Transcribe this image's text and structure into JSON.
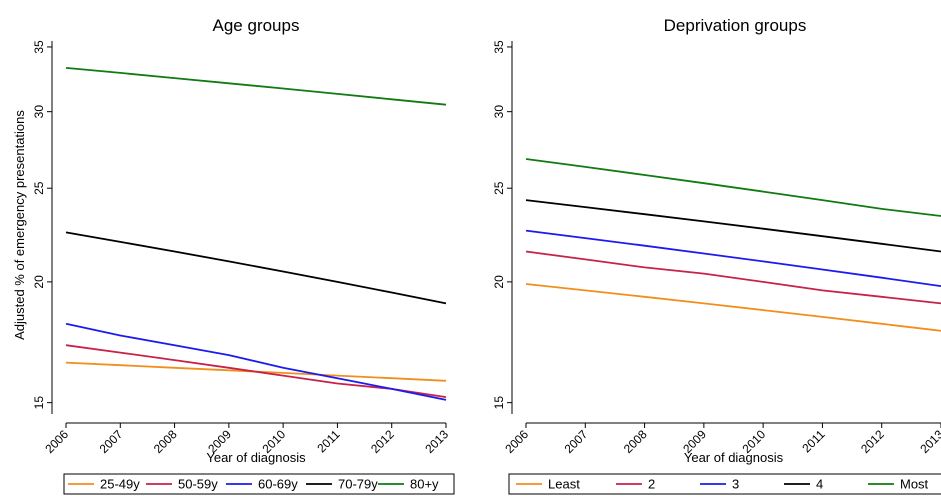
{
  "colors": {
    "orange": "#f28e1c",
    "red": "#c8214a",
    "blue": "#1b1bf0",
    "black": "#000000",
    "green": "#117a11"
  },
  "chart_data": [
    {
      "type": "line",
      "title": "Age groups",
      "xlabel": "Year of diagnosis",
      "ylabel": "Adjusted % of emergency presentations",
      "x": [
        "2006",
        "2007",
        "2008",
        "2009",
        "2010",
        "2011",
        "2012",
        "2013"
      ],
      "yscale": "log",
      "ylim": [
        14.6,
        35.5
      ],
      "yticks": [
        "15",
        "20",
        "25",
        "30",
        "35"
      ],
      "grid": false,
      "legend_position": "bottom",
      "series": [
        {
          "name": "25-49y",
          "color": "orange",
          "values": [
            16.5,
            16.4,
            16.3,
            16.2,
            16.1,
            16.0,
            15.9,
            15.8
          ]
        },
        {
          "name": "50-59y",
          "color": "red",
          "values": [
            17.2,
            16.9,
            16.6,
            16.3,
            16.0,
            15.7,
            15.5,
            15.2
          ]
        },
        {
          "name": "60-69y",
          "color": "blue",
          "values": [
            18.1,
            17.6,
            17.2,
            16.8,
            16.3,
            15.9,
            15.5,
            15.1
          ]
        },
        {
          "name": "70-79y",
          "color": "black",
          "values": [
            22.5,
            22.0,
            21.5,
            21.0,
            20.5,
            20.0,
            19.5,
            19.0
          ]
        },
        {
          "name": "80+y",
          "color": "green",
          "values": [
            33.3,
            32.9,
            32.5,
            32.1,
            31.7,
            31.3,
            30.9,
            30.5
          ]
        }
      ]
    },
    {
      "type": "line",
      "title": "Deprivation groups",
      "xlabel": "Year of diagnosis",
      "ylabel": "",
      "x": [
        "2006",
        "2007",
        "2008",
        "2009",
        "2010",
        "2011",
        "2012",
        "2013"
      ],
      "yscale": "log",
      "ylim": [
        14.6,
        35.5
      ],
      "yticks": [
        "15",
        "20",
        "25",
        "30",
        "35"
      ],
      "grid": false,
      "legend_position": "bottom",
      "series": [
        {
          "name": "Least",
          "color": "orange",
          "values": [
            19.9,
            19.6,
            19.3,
            19.0,
            18.7,
            18.4,
            18.1,
            17.8
          ]
        },
        {
          "name": "2",
          "color": "red",
          "values": [
            21.5,
            21.1,
            20.7,
            20.4,
            20.0,
            19.6,
            19.3,
            19.0
          ]
        },
        {
          "name": "3",
          "color": "blue",
          "values": [
            22.6,
            22.2,
            21.8,
            21.4,
            21.0,
            20.6,
            20.2,
            19.8
          ]
        },
        {
          "name": "4",
          "color": "black",
          "values": [
            24.3,
            23.9,
            23.5,
            23.1,
            22.7,
            22.3,
            21.9,
            21.5
          ]
        },
        {
          "name": "Most",
          "color": "green",
          "values": [
            26.8,
            26.3,
            25.8,
            25.3,
            24.8,
            24.3,
            23.8,
            23.4
          ]
        }
      ]
    }
  ]
}
